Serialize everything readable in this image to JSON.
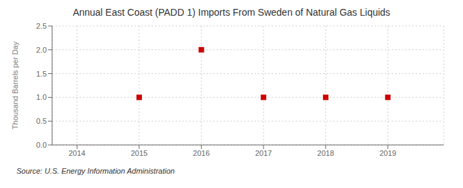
{
  "chart_data": {
    "type": "scatter",
    "title": "Annual East Coast (PADD 1) Imports From Sweden of Natural Gas Liquids",
    "y_label": "Thousand Barrels per Day",
    "source": "Source: U.S. Energy Information Administration",
    "x": [
      2015,
      2016,
      2017,
      2018,
      2019
    ],
    "values": [
      1.0,
      2.0,
      1.0,
      1.0,
      1.0
    ],
    "xlim": [
      2013.6,
      2019.9
    ],
    "ylim": [
      0.0,
      2.5
    ],
    "xticks": [
      2014,
      2015,
      2016,
      2017,
      2018,
      2019
    ],
    "yticks": [
      {
        "value": 0,
        "label": "0.0"
      },
      0.5,
      {
        "value": 1,
        "label": "1.0"
      },
      1.5,
      {
        "value": 2,
        "label": "2.0"
      },
      2.5
    ],
    "color": "#CC0000",
    "marker": "square",
    "grid": true
  }
}
